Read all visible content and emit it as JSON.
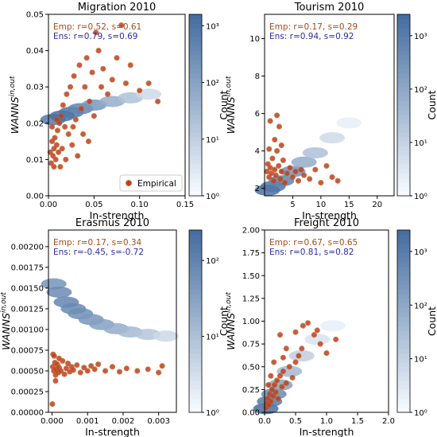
{
  "chart_data": [
    {
      "type": "scatter",
      "title": "Migration 2010",
      "xlabel": "In-strength",
      "ylabel": "WANNS",
      "ylabel_sup": "in,out",
      "xlim": [
        0,
        0.15
      ],
      "ylim": [
        0,
        0.05
      ],
      "xticks": [
        "0.00",
        "0.05",
        "0.10",
        "0.15"
      ],
      "yticks": [
        "0.00",
        "0.01",
        "0.02",
        "0.03",
        "0.04",
        "0.05"
      ],
      "stats": {
        "emp": "Emp: r=0.52, s=0.61",
        "ens": "Ens: r=0.79, s=0.69"
      },
      "legend": {
        "label": "Empirical",
        "position": "lower right"
      },
      "colorbar": {
        "label": "Count",
        "ticks": [
          "10⁰",
          "10¹",
          "10²",
          "10³"
        ],
        "decades": 3.2,
        "scale": "log"
      },
      "ensemble_band": [
        {
          "x": 0.005,
          "y": 0.021,
          "count": 900
        },
        {
          "x": 0.015,
          "y": 0.022,
          "count": 1500
        },
        {
          "x": 0.025,
          "y": 0.023,
          "count": 1000
        },
        {
          "x": 0.035,
          "y": 0.024,
          "count": 500
        },
        {
          "x": 0.05,
          "y": 0.025,
          "count": 200
        },
        {
          "x": 0.07,
          "y": 0.026,
          "count": 60
        },
        {
          "x": 0.09,
          "y": 0.027,
          "count": 20
        },
        {
          "x": 0.11,
          "y": 0.028,
          "count": 6
        }
      ],
      "empirical": [
        [
          0.002,
          0.012
        ],
        [
          0.003,
          0.009
        ],
        [
          0.004,
          0.015
        ],
        [
          0.005,
          0.011
        ],
        [
          0.006,
          0.013
        ],
        [
          0.007,
          0.016
        ],
        [
          0.008,
          0.01
        ],
        [
          0.009,
          0.014
        ],
        [
          0.01,
          0.018
        ],
        [
          0.011,
          0.012
        ],
        [
          0.012,
          0.02
        ],
        [
          0.013,
          0.008
        ],
        [
          0.014,
          0.022
        ],
        [
          0.016,
          0.025
        ],
        [
          0.018,
          0.019
        ],
        [
          0.02,
          0.028
        ],
        [
          0.022,
          0.017
        ],
        [
          0.024,
          0.03
        ],
        [
          0.026,
          0.014
        ],
        [
          0.028,
          0.033
        ],
        [
          0.03,
          0.021
        ],
        [
          0.032,
          0.011
        ],
        [
          0.034,
          0.036
        ],
        [
          0.036,
          0.024
        ],
        [
          0.038,
          0.017
        ],
        [
          0.04,
          0.03
        ],
        [
          0.042,
          0.038
        ],
        [
          0.045,
          0.026
        ],
        [
          0.048,
          0.034
        ],
        [
          0.05,
          0.022
        ],
        [
          0.055,
          0.04
        ],
        [
          0.058,
          0.03
        ],
        [
          0.06,
          0.035
        ],
        [
          0.065,
          0.028
        ],
        [
          0.07,
          0.032
        ],
        [
          0.075,
          0.038
        ],
        [
          0.08,
          0.047
        ],
        [
          0.085,
          0.031
        ],
        [
          0.09,
          0.036
        ],
        [
          0.1,
          0.029
        ],
        [
          0.11,
          0.031
        ],
        [
          0.12,
          0.026
        ],
        [
          0.004,
          0.019
        ],
        [
          0.006,
          0.008
        ],
        [
          0.009,
          0.021
        ],
        [
          0.015,
          0.013
        ],
        [
          0.019,
          0.01
        ],
        [
          0.027,
          0.019
        ],
        [
          0.044,
          0.015
        ],
        [
          0.052,
          0.045
        ]
      ]
    },
    {
      "type": "scatter",
      "title": "Tourism 2010",
      "xlabel": "In-strength",
      "ylabel": "WANNS",
      "ylabel_sup": "in,out",
      "xlim": [
        0,
        23
      ],
      "ylim": [
        1.6,
        11.3
      ],
      "xticks": [
        "5",
        "10",
        "15",
        "20"
      ],
      "yticks": [
        "2",
        "4",
        "6",
        "8",
        "10"
      ],
      "stats": {
        "emp": "Emp: r=0.17, s=0.29",
        "ens": "Ens: r=0.94, s=0.92"
      },
      "colorbar": {
        "label": "Count",
        "ticks": [
          "10⁰",
          "10¹",
          "10²",
          "10³"
        ],
        "decades": 3.4,
        "scale": "log"
      },
      "ensemble_band": [
        {
          "x": 0.5,
          "y": 1.9,
          "count": 2000
        },
        {
          "x": 1.5,
          "y": 2.1,
          "count": 1500
        },
        {
          "x": 3,
          "y": 2.4,
          "count": 800
        },
        {
          "x": 5,
          "y": 2.9,
          "count": 300
        },
        {
          "x": 7,
          "y": 3.4,
          "count": 80
        },
        {
          "x": 9,
          "y": 3.9,
          "count": 25
        },
        {
          "x": 12,
          "y": 4.7,
          "count": 6
        },
        {
          "x": 15,
          "y": 5.5,
          "count": 2
        }
      ],
      "empirical": [
        [
          0.4,
          2.9
        ],
        [
          0.6,
          3.3
        ],
        [
          0.8,
          2.6
        ],
        [
          1.0,
          3.1
        ],
        [
          1.2,
          2.8
        ],
        [
          1.4,
          3.6
        ],
        [
          1.6,
          2.4
        ],
        [
          1.8,
          3.0
        ],
        [
          2.0,
          2.7
        ],
        [
          2.2,
          4.0
        ],
        [
          2.5,
          3.2
        ],
        [
          2.8,
          2.5
        ],
        [
          3.0,
          2.9
        ],
        [
          3.3,
          3.5
        ],
        [
          3.6,
          2.3
        ],
        [
          4.0,
          2.8
        ],
        [
          4.5,
          3.1
        ],
        [
          5.0,
          2.6
        ],
        [
          5.5,
          2.9
        ],
        [
          6.0,
          2.4
        ],
        [
          6.5,
          3.0
        ],
        [
          7.0,
          2.7
        ],
        [
          8.0,
          2.5
        ],
        [
          9.0,
          3.0
        ],
        [
          10.0,
          2.3
        ],
        [
          11.0,
          3.2
        ],
        [
          12.0,
          2.6
        ],
        [
          1.0,
          5.6
        ],
        [
          1.8,
          4.6
        ],
        [
          2.6,
          5.3
        ],
        [
          3.0,
          4.3
        ],
        [
          2.2,
          5.9
        ],
        [
          0.8,
          4.1
        ],
        [
          13.0,
          2.4
        ]
      ]
    },
    {
      "type": "scatter",
      "title": "Erasmus 2010",
      "xlabel": "In-strength",
      "ylabel": "WANNS",
      "ylabel_sup": "in,out",
      "xlim": [
        -0.0001,
        0.0035
      ],
      "ylim": [
        0,
        0.0022
      ],
      "xticks": [
        "0.000",
        "0.001",
        "0.002",
        "0.003"
      ],
      "yticks": [
        "0.00000",
        "0.00025",
        "0.00050",
        "0.00075",
        "0.00100",
        "0.00125",
        "0.00150",
        "0.00175",
        "0.00200"
      ],
      "stats": {
        "emp": "Emp: r=0.17, s=0.34",
        "ens": "Ens: r=-0.45, s=-0.72"
      },
      "colorbar": {
        "label": "Count",
        "ticks": [
          "10⁰",
          "10¹",
          "10²"
        ],
        "decades": 2.4,
        "scale": "log"
      },
      "ensemble_band": [
        {
          "x": 5e-05,
          "y": 0.00155,
          "count": 60
        },
        {
          "x": 0.0002,
          "y": 0.00145,
          "count": 80
        },
        {
          "x": 0.0004,
          "y": 0.00133,
          "count": 100
        },
        {
          "x": 0.0006,
          "y": 0.00125,
          "count": 90
        },
        {
          "x": 0.0008,
          "y": 0.00119,
          "count": 70
        },
        {
          "x": 0.0011,
          "y": 0.00112,
          "count": 50
        },
        {
          "x": 0.0014,
          "y": 0.00106,
          "count": 35
        },
        {
          "x": 0.0018,
          "y": 0.00101,
          "count": 22
        },
        {
          "x": 0.0022,
          "y": 0.00097,
          "count": 14
        },
        {
          "x": 0.0027,
          "y": 0.00094,
          "count": 8
        },
        {
          "x": 0.0032,
          "y": 0.00092,
          "count": 4
        }
      ],
      "empirical": [
        [
          2e-05,
          0.00055
        ],
        [
          5e-05,
          0.0005
        ],
        [
          8e-05,
          0.0006
        ],
        [
          0.0001,
          0.00045
        ],
        [
          0.00012,
          0.00052
        ],
        [
          0.00015,
          0.00058
        ],
        [
          0.00018,
          0.00048
        ],
        [
          0.0002,
          0.00054
        ],
        [
          0.00025,
          0.0005
        ],
        [
          0.0003,
          0.00062
        ],
        [
          0.00035,
          0.00046
        ],
        [
          0.0004,
          0.00053
        ],
        [
          0.00045,
          0.00059
        ],
        [
          0.0005,
          0.00049
        ],
        [
          0.00055,
          0.00055
        ],
        [
          0.0006,
          0.00051
        ],
        [
          0.0007,
          0.00057
        ],
        [
          0.0008,
          0.00048
        ],
        [
          0.0009,
          0.00054
        ],
        [
          0.001,
          0.0005
        ],
        [
          0.0011,
          0.00056
        ],
        [
          0.0012,
          0.00052
        ],
        [
          0.0013,
          0.00058
        ],
        [
          0.0015,
          0.0005
        ],
        [
          0.0017,
          0.00055
        ],
        [
          0.0019,
          0.00049
        ],
        [
          0.0021,
          0.00053
        ],
        [
          0.0024,
          0.0005
        ],
        [
          0.0027,
          0.00052
        ],
        [
          0.003,
          0.00048
        ],
        [
          0.0031,
          0.00056
        ],
        [
          3e-05,
          0.0007
        ],
        [
          6e-05,
          0.00068
        ],
        [
          0.0001,
          0.00038
        ],
        [
          0.0002,
          0.00065
        ],
        [
          1e-05,
          0.0001
        ]
      ]
    },
    {
      "type": "scatter",
      "title": "Freight 2010",
      "xlabel": "In-strength",
      "ylabel": "WANNS",
      "ylabel_sup": "in,out",
      "xlim": [
        0,
        2.0
      ],
      "ylim": [
        0,
        2.0
      ],
      "xticks": [
        "0.0",
        "0.5",
        "1.0",
        "1.5",
        "2.0"
      ],
      "yticks": [
        "0.00",
        "0.25",
        "0.50",
        "0.75",
        "1.00",
        "1.25",
        "1.50",
        "1.75",
        "2.00"
      ],
      "stats": {
        "emp": "Emp: r=0.67, s=0.65",
        "ens": "Ens: r=0.81, s=0.82"
      },
      "colorbar": {
        "label": "Count",
        "ticks": [
          "10⁰",
          "10¹",
          "10²",
          "10³"
        ],
        "decades": 3.4,
        "scale": "log"
      },
      "ensemble_band": [
        {
          "x": 0.02,
          "y": 0.04,
          "count": 2500
        },
        {
          "x": 0.08,
          "y": 0.12,
          "count": 1200
        },
        {
          "x": 0.15,
          "y": 0.2,
          "count": 500
        },
        {
          "x": 0.25,
          "y": 0.3,
          "count": 150
        },
        {
          "x": 0.4,
          "y": 0.45,
          "count": 40
        },
        {
          "x": 0.6,
          "y": 0.62,
          "count": 12
        },
        {
          "x": 0.85,
          "y": 0.8,
          "count": 4
        },
        {
          "x": 1.1,
          "y": 0.95,
          "count": 2
        }
      ],
      "empirical": [
        [
          0.02,
          0.05
        ],
        [
          0.04,
          0.1
        ],
        [
          0.05,
          0.15
        ],
        [
          0.07,
          0.08
        ],
        [
          0.08,
          0.2
        ],
        [
          0.1,
          0.12
        ],
        [
          0.12,
          0.25
        ],
        [
          0.14,
          0.18
        ],
        [
          0.16,
          0.3
        ],
        [
          0.18,
          0.22
        ],
        [
          0.2,
          0.35
        ],
        [
          0.22,
          0.15
        ],
        [
          0.25,
          0.4
        ],
        [
          0.28,
          0.28
        ],
        [
          0.3,
          0.45
        ],
        [
          0.35,
          0.32
        ],
        [
          0.4,
          0.5
        ],
        [
          0.45,
          0.38
        ],
        [
          0.5,
          0.55
        ],
        [
          0.55,
          0.62
        ],
        [
          0.6,
          0.7
        ],
        [
          0.62,
          0.95
        ],
        [
          0.7,
          0.98
        ],
        [
          0.8,
          0.85
        ],
        [
          0.85,
          0.9
        ],
        [
          0.9,
          0.75
        ],
        [
          1.0,
          0.65
        ],
        [
          1.15,
          0.8
        ],
        [
          0.3,
          0.6
        ],
        [
          0.25,
          0.85
        ],
        [
          0.15,
          0.55
        ],
        [
          0.35,
          0.7
        ],
        [
          0.5,
          0.88
        ],
        [
          0.1,
          0.4
        ],
        [
          0.06,
          0.3
        ]
      ]
    }
  ]
}
